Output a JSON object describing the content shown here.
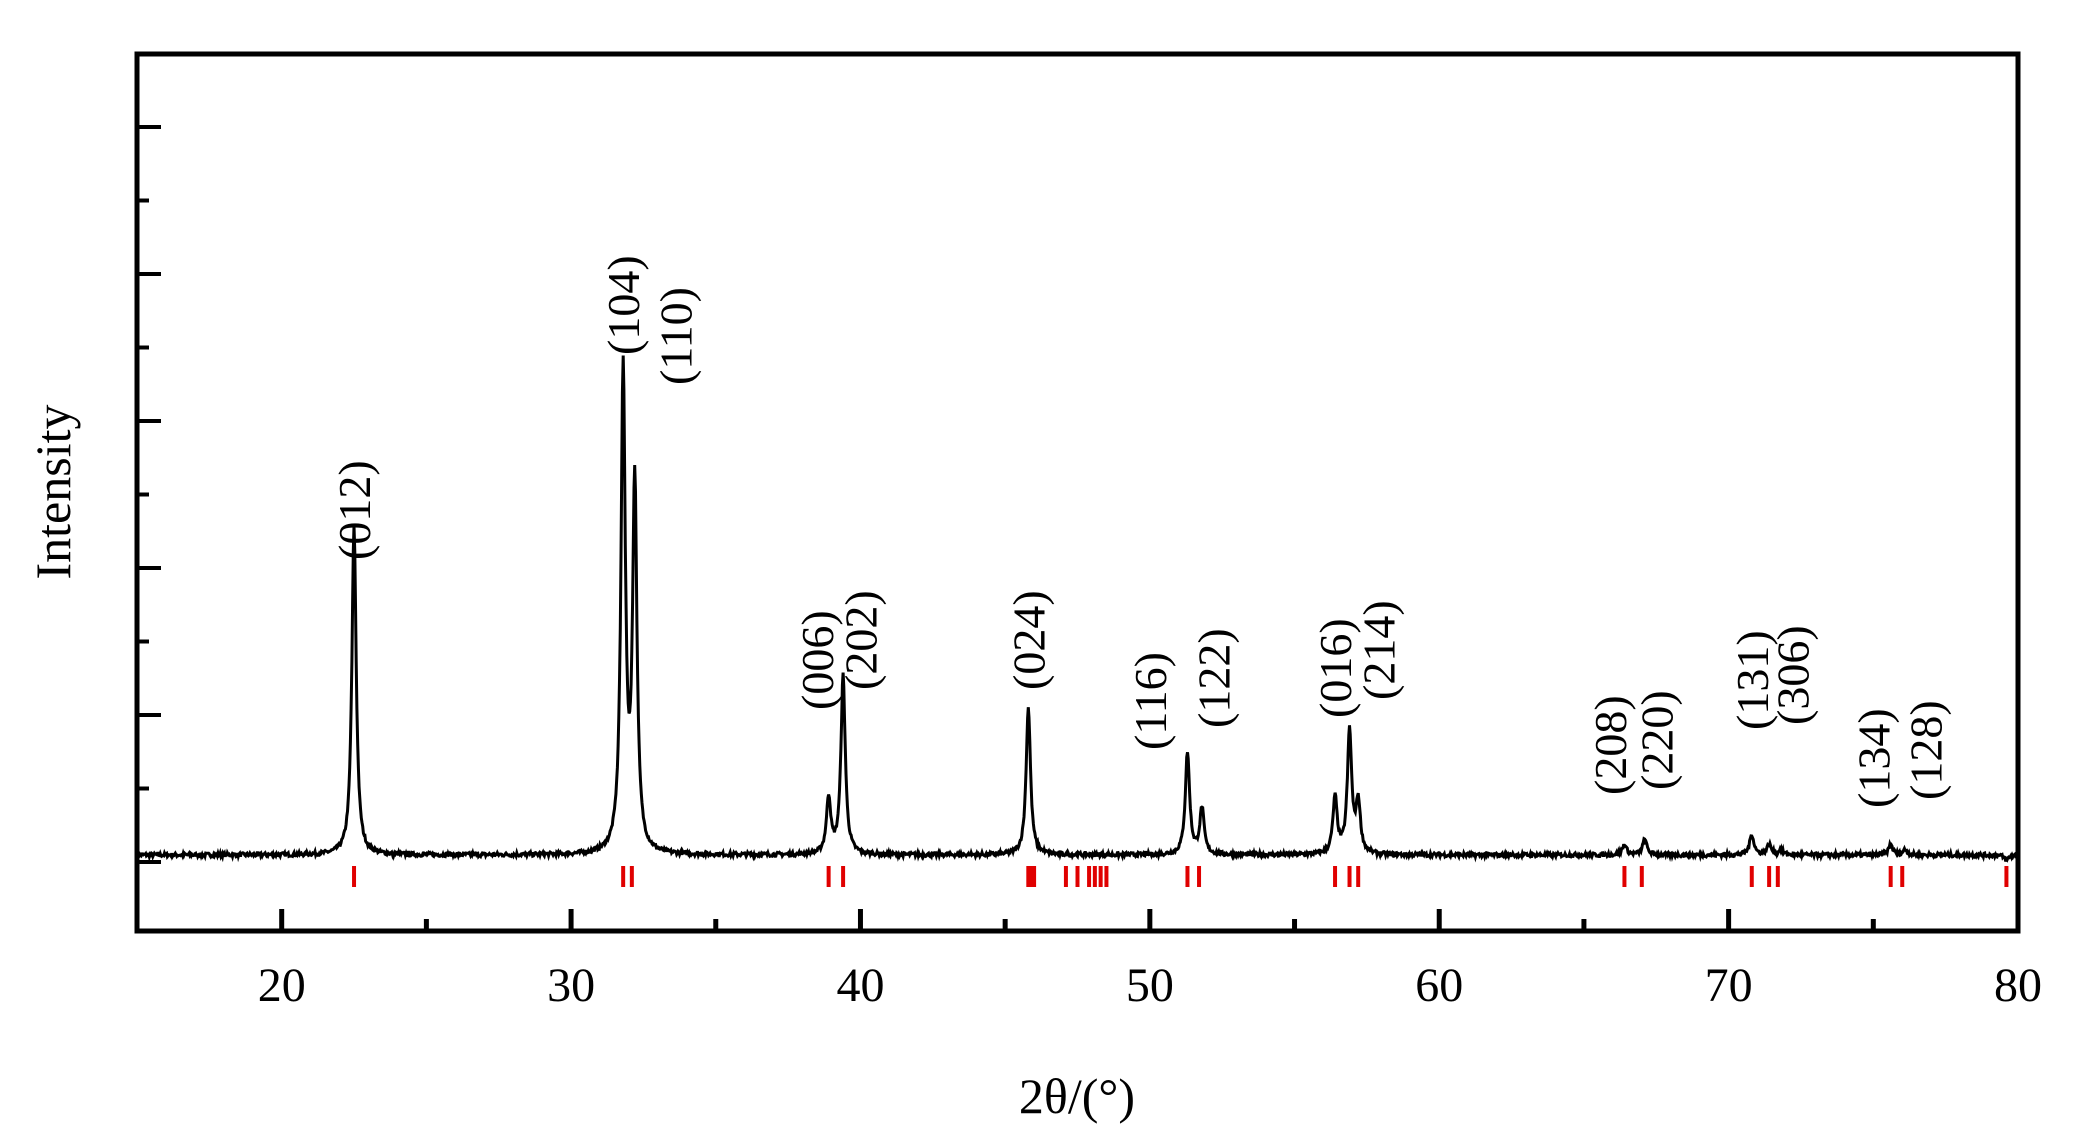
{
  "chart_data": {
    "type": "line",
    "xlabel": "2θ/(°)",
    "ylabel": "Intensity",
    "xlim": [
      15,
      80
    ],
    "ylim": [
      0,
      100
    ],
    "x_ticks": [
      20,
      30,
      40,
      50,
      60,
      70,
      80
    ],
    "y_tick_labels": false,
    "baseline": 4,
    "peaks": [
      {
        "x": 22.5,
        "y": 68
      },
      {
        "x": 31.8,
        "y": 98
      },
      {
        "x": 32.2,
        "y": 76
      },
      {
        "x": 38.9,
        "y": 15
      },
      {
        "x": 39.4,
        "y": 39
      },
      {
        "x": 45.8,
        "y": 33
      },
      {
        "x": 51.3,
        "y": 24
      },
      {
        "x": 51.8,
        "y": 13
      },
      {
        "x": 56.4,
        "y": 15
      },
      {
        "x": 56.9,
        "y": 28
      },
      {
        "x": 57.2,
        "y": 14
      },
      {
        "x": 66.4,
        "y": 6
      },
      {
        "x": 67.1,
        "y": 7
      },
      {
        "x": 70.8,
        "y": 8
      },
      {
        "x": 71.4,
        "y": 6
      },
      {
        "x": 71.8,
        "y": 5
      },
      {
        "x": 75.6,
        "y": 6
      },
      {
        "x": 76.1,
        "y": 5
      },
      {
        "x": 79.6,
        "y": 3
      }
    ],
    "reference_lines_x": [
      22.5,
      31.8,
      32.1,
      38.9,
      39.4,
      45.8,
      45.9,
      46.0,
      47.1,
      47.5,
      47.9,
      48.1,
      48.3,
      48.5,
      51.3,
      51.7,
      56.4,
      56.9,
      57.2,
      66.4,
      67.0,
      70.8,
      71.4,
      71.7,
      75.6,
      76.0,
      79.6
    ],
    "reference_color": "#e00000",
    "labels": [
      {
        "text": "(012)",
        "x": 22.5
      },
      {
        "text": "(104)",
        "x": 31.8
      },
      {
        "text": "(110)",
        "x": 33.6
      },
      {
        "text": "(006)",
        "x": 38.5
      },
      {
        "text": "(202)",
        "x": 40.0
      },
      {
        "text": "(024)",
        "x": 45.8
      },
      {
        "text": "(116)",
        "x": 50.0
      },
      {
        "text": "(122)",
        "x": 52.2
      },
      {
        "text": "(016)",
        "x": 56.4
      },
      {
        "text": "(214)",
        "x": 57.9
      },
      {
        "text": "(208)",
        "x": 65.9
      },
      {
        "text": "(220)",
        "x": 67.5
      },
      {
        "text": "(131)",
        "x": 70.8
      },
      {
        "text": "(306)",
        "x": 72.2
      },
      {
        "text": "(134)",
        "x": 75.0
      },
      {
        "text": "(128)",
        "x": 76.8
      }
    ]
  }
}
